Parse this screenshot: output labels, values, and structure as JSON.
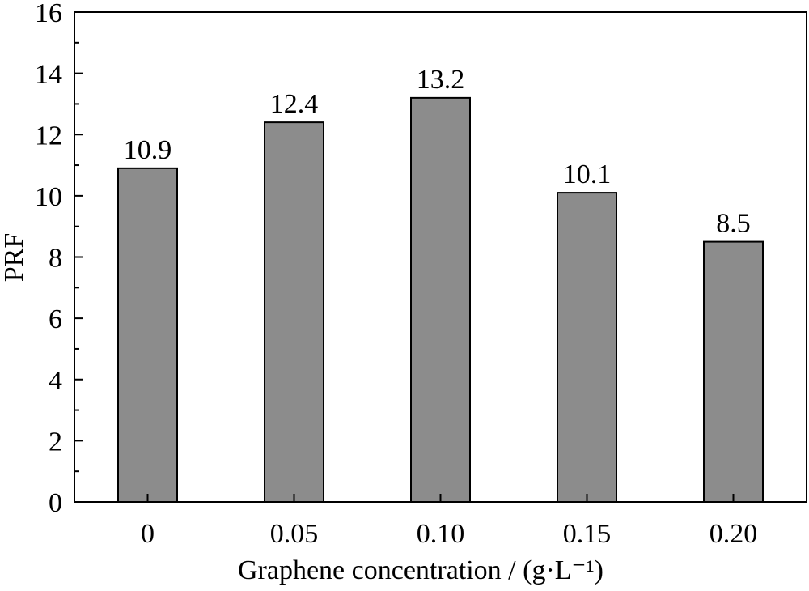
{
  "chart_data": {
    "type": "bar",
    "title": "",
    "xlabel": "Graphene concentration / (g·L⁻¹)",
    "ylabel": "PRF",
    "categories": [
      "0",
      "0.05",
      "0.10",
      "0.15",
      "0.20"
    ],
    "values": [
      10.9,
      12.4,
      13.2,
      10.1,
      8.5
    ],
    "data_labels": [
      "10.9",
      "12.4",
      "13.2",
      "10.1",
      "8.5"
    ],
    "ylim": [
      0,
      16
    ],
    "yticks": [
      "0",
      "2",
      "4",
      "6",
      "8",
      "10",
      "12",
      "14",
      "16"
    ],
    "grid": false,
    "legend": "none",
    "colors": {
      "bar_fill": "#8c8c8c",
      "bar_stroke": "#000000",
      "axis": "#000000"
    }
  }
}
